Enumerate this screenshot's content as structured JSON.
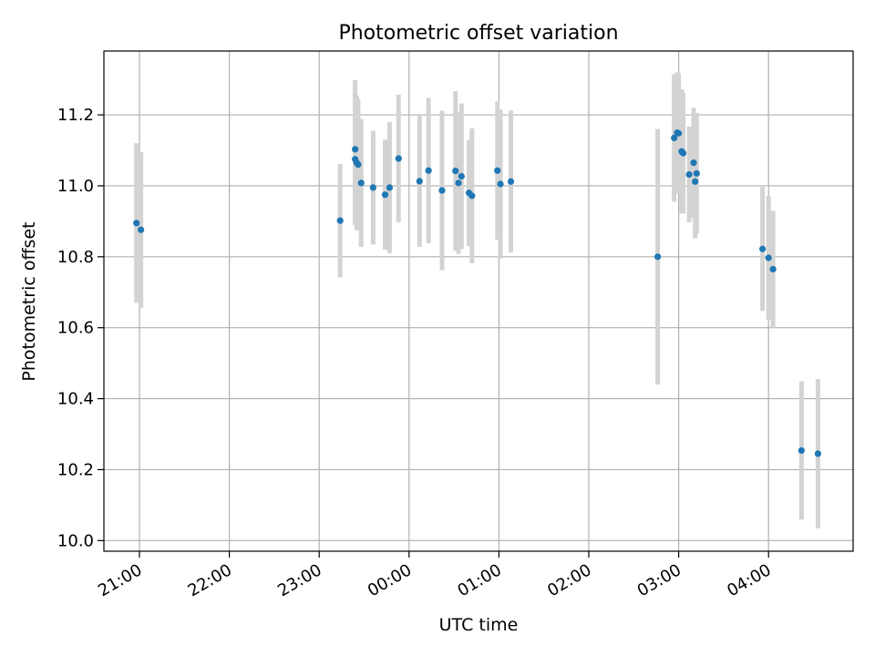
{
  "chart_data": {
    "type": "scatter",
    "title": "Photometric offset variation",
    "xlabel": "UTC time",
    "ylabel": "Photometric offset",
    "x_ticks": [
      "21:00",
      "22:00",
      "23:00",
      "00:00",
      "01:00",
      "02:00",
      "03:00",
      "04:00"
    ],
    "y_ticks": [
      "10.0",
      "10.2",
      "10.4",
      "10.6",
      "10.8",
      "11.0",
      "11.2"
    ],
    "xlim": [
      "20:36",
      "04:58"
    ],
    "ylim": [
      9.97,
      11.38
    ],
    "grid": true,
    "marker_color": "#1f77b4",
    "errorbar_color": "#d3d3d3",
    "points": [
      {
        "x": "20:58",
        "y": 10.895,
        "err": 0.225
      },
      {
        "x": "21:01",
        "y": 10.876,
        "err": 0.22
      },
      {
        "x": "23:14",
        "y": 10.902,
        "err": 0.16
      },
      {
        "x": "23:24",
        "y": 11.103,
        "err": 0.195
      },
      {
        "x": "23:24",
        "y": 11.075,
        "err": 0.185
      },
      {
        "x": "23:25",
        "y": 11.065,
        "err": 0.19
      },
      {
        "x": "23:26",
        "y": 11.06,
        "err": 0.185
      },
      {
        "x": "23:28",
        "y": 11.008,
        "err": 0.18
      },
      {
        "x": "23:36",
        "y": 10.995,
        "err": 0.16
      },
      {
        "x": "23:44",
        "y": 10.975,
        "err": 0.155
      },
      {
        "x": "23:47",
        "y": 10.995,
        "err": 0.185
      },
      {
        "x": "23:53",
        "y": 11.077,
        "err": 0.18
      },
      {
        "x": "00:07",
        "y": 11.013,
        "err": 0.185
      },
      {
        "x": "00:13",
        "y": 11.043,
        "err": 0.205
      },
      {
        "x": "00:22",
        "y": 10.987,
        "err": 0.225
      },
      {
        "x": "00:31",
        "y": 11.042,
        "err": 0.225
      },
      {
        "x": "00:33",
        "y": 11.008,
        "err": 0.2
      },
      {
        "x": "00:35",
        "y": 11.027,
        "err": 0.205
      },
      {
        "x": "00:40",
        "y": 10.98,
        "err": 0.15
      },
      {
        "x": "00:42",
        "y": 10.972,
        "err": 0.19
      },
      {
        "x": "00:59",
        "y": 11.043,
        "err": 0.195
      },
      {
        "x": "01:01",
        "y": 11.005,
        "err": 0.21
      },
      {
        "x": "01:08",
        "y": 11.012,
        "err": 0.2
      },
      {
        "x": "02:46",
        "y": 10.8,
        "err": 0.36
      },
      {
        "x": "02:57",
        "y": 11.135,
        "err": 0.18
      },
      {
        "x": "02:59",
        "y": 11.15,
        "err": 0.17
      },
      {
        "x": "03:00",
        "y": 11.148,
        "err": 0.17
      },
      {
        "x": "03:02",
        "y": 11.097,
        "err": 0.175
      },
      {
        "x": "03:03",
        "y": 11.092,
        "err": 0.17
      },
      {
        "x": "03:07",
        "y": 11.032,
        "err": 0.135
      },
      {
        "x": "03:10",
        "y": 11.065,
        "err": 0.155
      },
      {
        "x": "03:11",
        "y": 11.012,
        "err": 0.16
      },
      {
        "x": "03:12",
        "y": 11.035,
        "err": 0.17
      },
      {
        "x": "03:56",
        "y": 10.822,
        "err": 0.175
      },
      {
        "x": "04:00",
        "y": 10.797,
        "err": 0.175
      },
      {
        "x": "04:03",
        "y": 10.765,
        "err": 0.165
      },
      {
        "x": "04:22",
        "y": 10.254,
        "err": 0.195
      },
      {
        "x": "04:33",
        "y": 10.245,
        "err": 0.21
      }
    ]
  }
}
